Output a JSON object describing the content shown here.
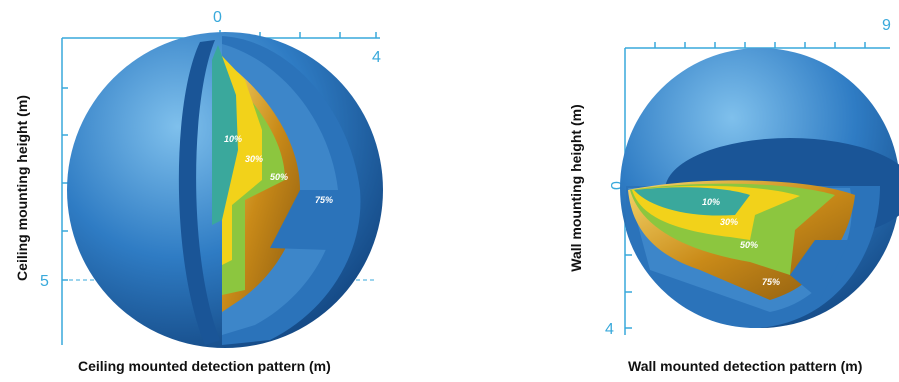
{
  "ceiling": {
    "y_axis_label": "Ceiling mounting height (m)",
    "caption": "Ceiling mounted detection pattern (m)",
    "tick_top": "0",
    "tick_right": "4",
    "tick_height": "5",
    "zones": [
      "10%",
      "30%",
      "50%",
      "75%"
    ]
  },
  "wall": {
    "y_axis_label": "Wall mounting height (m)",
    "caption": "Wall mounted detection pattern (m)",
    "tick_right": "9",
    "tick_origin": "0",
    "tick_bottom": "4",
    "zones": [
      "10%",
      "30%",
      "50%",
      "75%"
    ]
  },
  "colors": {
    "axis": "#39a9db",
    "sphere_dark": "#1f5f9e",
    "sphere_light": "#5aa6dc",
    "zone_teal": "#3aa89c",
    "zone_yellow": "#f2d21a",
    "zone_green": "#8cc63f",
    "zone_gold": "#d79a22"
  }
}
